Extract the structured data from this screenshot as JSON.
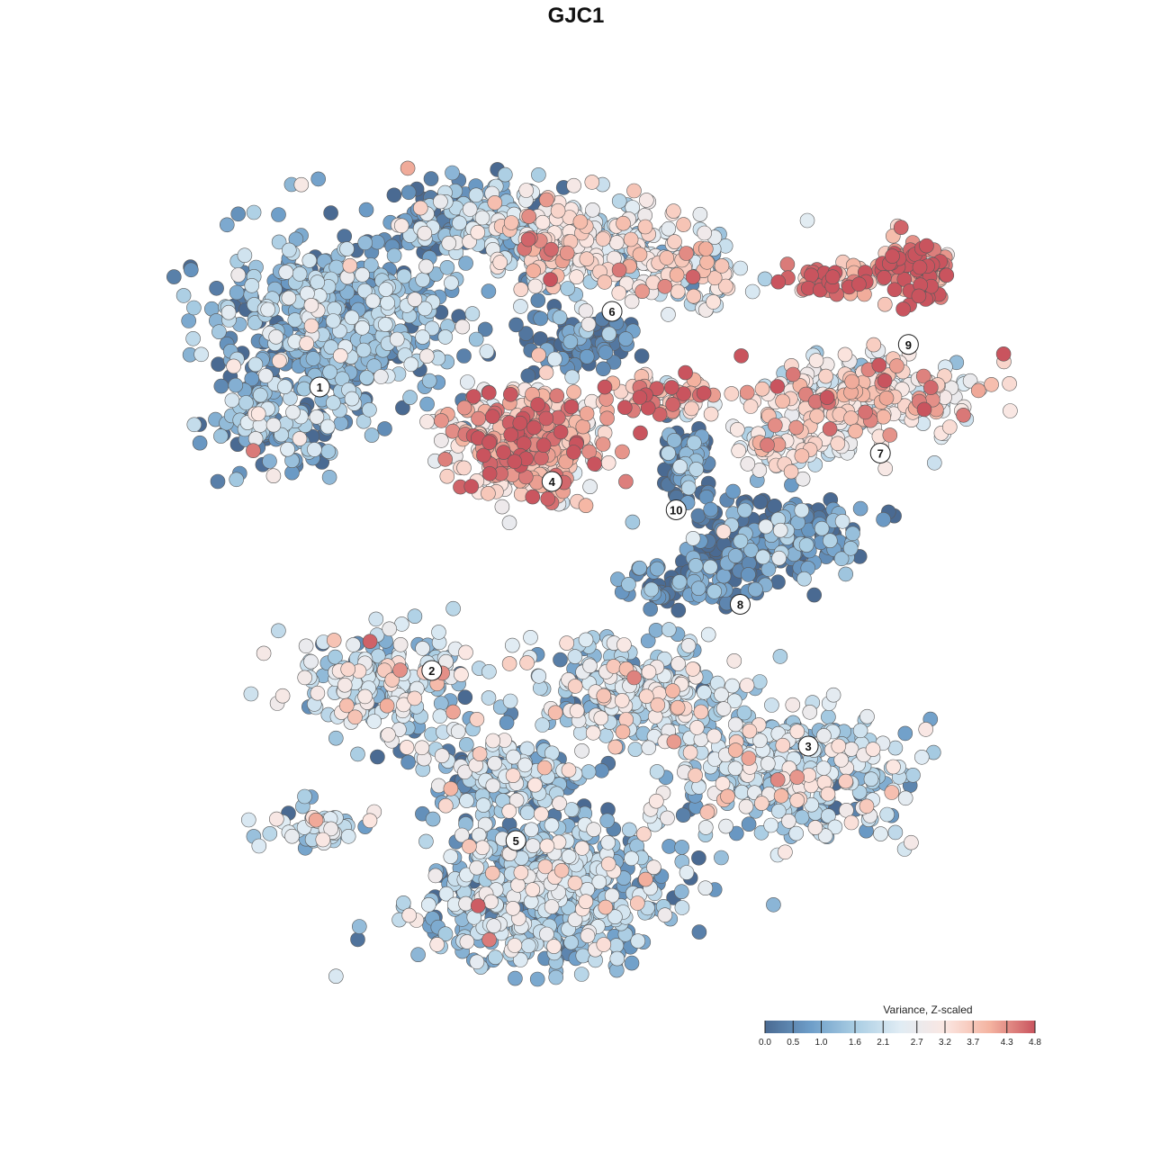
{
  "title": "GJC1",
  "chart_data": {
    "type": "scatter",
    "title": "GJC1",
    "xlabel": "",
    "ylabel": "",
    "grid": false,
    "legend_position": "bottom-right",
    "colorbar": {
      "title": "Variance, Z-scaled",
      "range": [
        0.0,
        4.8
      ],
      "tick_labels": [
        "0.0",
        "0.5",
        "1.0",
        "1.6",
        "2.1",
        "2.7",
        "3.2",
        "3.7",
        "4.3",
        "4.8"
      ],
      "tick_values": [
        0.0,
        0.5,
        1.0,
        1.6,
        2.1,
        2.7,
        3.2,
        3.7,
        4.3,
        4.8
      ],
      "palette": [
        "#4a6a92",
        "#6d9dc8",
        "#a9cde3",
        "#e0ecf4",
        "#fbe7e2",
        "#f4b3a0",
        "#c9545e"
      ]
    },
    "clusters": [
      {
        "label": "1",
        "x": -0.64,
        "y": 0.4,
        "level": 1.2
      },
      {
        "label": "2",
        "x": -0.36,
        "y": -0.2,
        "level": 2.0
      },
      {
        "label": "3",
        "x": 0.58,
        "y": -0.36,
        "level": 1.9
      },
      {
        "label": "4",
        "x": -0.06,
        "y": 0.2,
        "level": 3.6
      },
      {
        "label": "5",
        "x": -0.15,
        "y": -0.56,
        "level": 1.5
      },
      {
        "label": "6",
        "x": 0.09,
        "y": 0.56,
        "level": 2.5
      },
      {
        "label": "7",
        "x": 0.76,
        "y": 0.26,
        "level": 3.0
      },
      {
        "label": "8",
        "x": 0.41,
        "y": -0.06,
        "level": 0.3
      },
      {
        "label": "9",
        "x": 0.83,
        "y": 0.49,
        "level": 4.6
      },
      {
        "label": "10",
        "x": 0.25,
        "y": 0.14,
        "level": 0.3
      }
    ]
  }
}
